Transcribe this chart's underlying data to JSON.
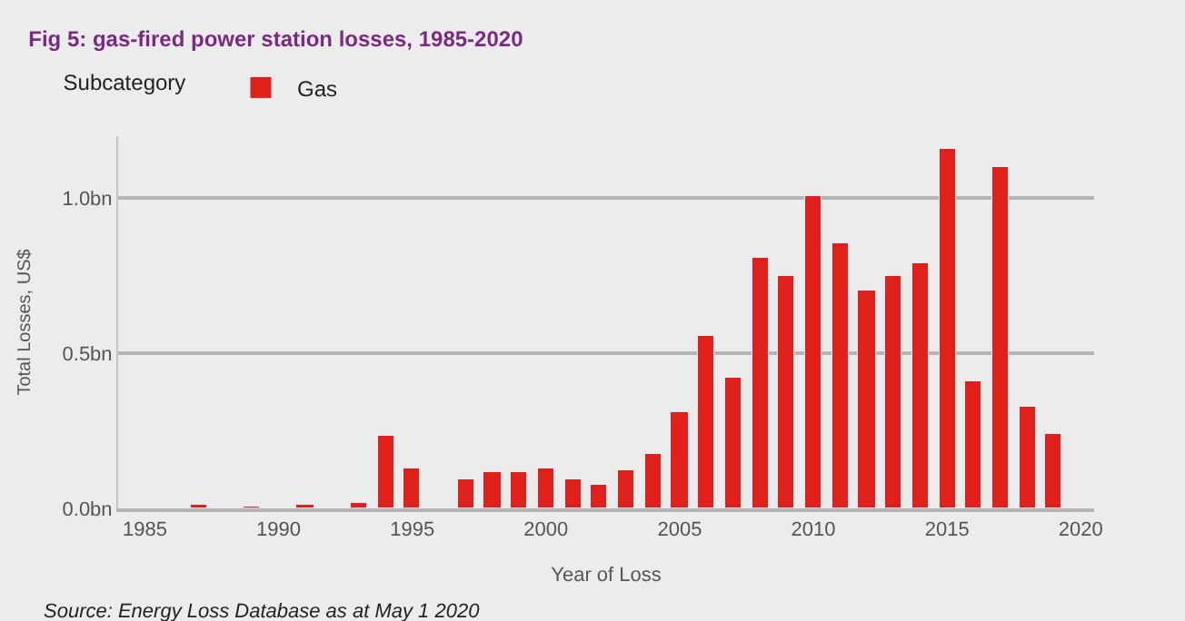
{
  "chart_data": {
    "type": "bar",
    "title": "Fig 5: gas-fired power station losses, 1985-2020",
    "xlabel": "Year of Loss",
    "ylabel": "Total Losses, US$",
    "legend_title": "Subcategory",
    "x": [
      1987,
      1989,
      1991,
      1993,
      1994,
      1995,
      1997,
      1998,
      1999,
      2000,
      2001,
      2002,
      2003,
      2004,
      2005,
      2006,
      2007,
      2008,
      2009,
      2010,
      2011,
      2012,
      2013,
      2014,
      2015,
      2016,
      2017,
      2018,
      2019
    ],
    "series": [
      {
        "name": "Gas",
        "color": "#e0201b",
        "values": [
          0.01,
          0.006,
          0.012,
          0.02,
          0.235,
          0.13,
          0.095,
          0.115,
          0.115,
          0.127,
          0.092,
          0.079,
          0.123,
          0.174,
          0.308,
          0.554,
          0.42,
          0.809,
          0.749,
          1.004,
          0.857,
          0.705,
          0.749,
          0.789,
          1.161,
          0.407,
          1.101,
          0.33,
          0.242
        ]
      }
    ],
    "xlim": [
      1984,
      2020.5
    ],
    "xticks": [
      1985,
      1990,
      1995,
      2000,
      2005,
      2010,
      2015,
      2020
    ],
    "ylim": [
      0,
      1.2
    ],
    "yticks": [
      {
        "value": 0,
        "label": "0.0bn"
      },
      {
        "value": 0.5,
        "label": "0.5bn"
      },
      {
        "value": 1,
        "label": "1.0bn"
      }
    ],
    "grid": "y",
    "legend": "top left",
    "annotations": [
      "Source: Energy Loss Database as at May 1 2020"
    ]
  }
}
